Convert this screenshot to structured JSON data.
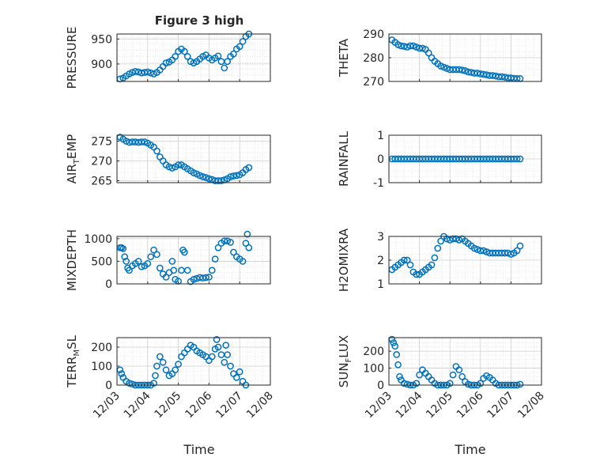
{
  "title": "Figure 3 high",
  "xlabel": "Time",
  "xticks": [
    "12/03",
    "12/04",
    "12/05",
    "12/06",
    "12/07",
    "12/08"
  ],
  "colors": {
    "marker": "#0072BD",
    "axis": "#262626",
    "grid": "#d9d9d9",
    "background": "#ffffff"
  },
  "chart_data": [
    {
      "type": "scatter",
      "ylabel_main": "PRESSURE",
      "ylabel_sub": "",
      "ylim": [
        865,
        960
      ],
      "yticks": [
        900,
        950
      ],
      "ytick_labels": [
        "900",
        "950"
      ],
      "x": [
        3.1,
        3.2,
        3.3,
        3.4,
        3.5,
        3.6,
        3.7,
        3.8,
        3.9,
        4.0,
        4.1,
        4.2,
        4.3,
        4.4,
        4.5,
        4.6,
        4.7,
        4.8,
        4.9,
        5.0,
        5.1,
        5.2,
        5.3,
        5.4,
        5.5,
        5.6,
        5.7,
        5.8,
        5.9,
        6.0,
        6.1,
        6.2,
        6.3,
        6.4,
        6.5,
        6.6,
        6.7,
        6.8,
        6.9,
        7.0,
        7.1,
        7.2,
        7.3
      ],
      "y": [
        870,
        872,
        876,
        880,
        883,
        885,
        884,
        882,
        883,
        884,
        882,
        880,
        883,
        888,
        895,
        902,
        904,
        908,
        915,
        925,
        930,
        925,
        915,
        905,
        902,
        905,
        910,
        915,
        918,
        912,
        908,
        912,
        916,
        905,
        892,
        905,
        915,
        920,
        930,
        935,
        945,
        955,
        960
      ]
    },
    {
      "type": "scatter",
      "ylabel_main": "THETA",
      "ylabel_sub": "",
      "ylim": [
        270,
        290
      ],
      "yticks": [
        270,
        280,
        290
      ],
      "ytick_labels": [
        "270",
        "280",
        "290"
      ],
      "x": [
        3.1,
        3.2,
        3.3,
        3.4,
        3.5,
        3.6,
        3.7,
        3.8,
        3.9,
        4.0,
        4.1,
        4.2,
        4.3,
        4.4,
        4.5,
        4.6,
        4.7,
        4.8,
        4.9,
        5.0,
        5.1,
        5.2,
        5.3,
        5.4,
        5.5,
        5.6,
        5.7,
        5.8,
        5.9,
        6.0,
        6.1,
        6.2,
        6.3,
        6.4,
        6.5,
        6.6,
        6.7,
        6.8,
        6.9,
        7.0,
        7.1,
        7.2,
        7.3
      ],
      "y": [
        287.5,
        286.5,
        285.5,
        285,
        284.8,
        284.5,
        285,
        285,
        284.5,
        284,
        284,
        283.5,
        282,
        280,
        278.5,
        277.5,
        276.5,
        276,
        275.5,
        275,
        275,
        275,
        275,
        274.8,
        274.5,
        274,
        273.8,
        273.5,
        273.5,
        273.2,
        273,
        272.8,
        272.5,
        272.5,
        272.3,
        272,
        272,
        271.8,
        271.5,
        271.5,
        271.3,
        271.2,
        271.2
      ]
    },
    {
      "type": "scatter",
      "ylabel_main": "AIR",
      "ylabel_sub": "T",
      "ylabel_rest": "EMP",
      "ylim": [
        264.5,
        276.5
      ],
      "yticks": [
        265,
        270,
        275
      ],
      "ytick_labels": [
        "265",
        "270",
        "275"
      ],
      "x": [
        3.1,
        3.2,
        3.3,
        3.4,
        3.5,
        3.6,
        3.7,
        3.8,
        3.9,
        4.0,
        4.1,
        4.2,
        4.3,
        4.4,
        4.5,
        4.6,
        4.7,
        4.8,
        4.9,
        5.0,
        5.1,
        5.2,
        5.3,
        5.4,
        5.5,
        5.6,
        5.7,
        5.8,
        5.9,
        6.0,
        6.1,
        6.2,
        6.3,
        6.4,
        6.5,
        6.6,
        6.7,
        6.8,
        6.9,
        7.0,
        7.1,
        7.2,
        7.3
      ],
      "y": [
        276,
        275.5,
        275,
        274.7,
        274.8,
        274.8,
        274.7,
        274.8,
        274.8,
        274.5,
        274,
        273.5,
        272.5,
        271,
        270,
        269,
        268.5,
        268.2,
        268.5,
        269,
        269,
        268.5,
        268,
        267.5,
        267,
        266.7,
        266.3,
        266,
        265.8,
        265.5,
        265.3,
        265,
        265,
        265,
        265.2,
        265.5,
        266,
        266.2,
        266.3,
        266.5,
        267,
        267.8,
        268.3
      ]
    },
    {
      "type": "scatter",
      "ylabel_main": "RAINFALL",
      "ylabel_sub": "",
      "ylim": [
        -1,
        1
      ],
      "yticks": [
        -1,
        0,
        1
      ],
      "ytick_labels": [
        "-1",
        "0",
        "1"
      ],
      "x": [
        3.1,
        3.2,
        3.3,
        3.4,
        3.5,
        3.6,
        3.7,
        3.8,
        3.9,
        4.0,
        4.1,
        4.2,
        4.3,
        4.4,
        4.5,
        4.6,
        4.7,
        4.8,
        4.9,
        5.0,
        5.1,
        5.2,
        5.3,
        5.4,
        5.5,
        5.6,
        5.7,
        5.8,
        5.9,
        6.0,
        6.1,
        6.2,
        6.3,
        6.4,
        6.5,
        6.6,
        6.7,
        6.8,
        6.9,
        7.0,
        7.1,
        7.2,
        7.3
      ],
      "y": [
        0,
        0,
        0,
        0,
        0,
        0,
        0,
        0,
        0,
        0,
        0,
        0,
        0,
        0,
        0,
        0,
        0,
        0,
        0,
        0,
        0,
        0,
        0,
        0,
        0,
        0,
        0,
        0,
        0,
        0,
        0,
        0,
        0,
        0,
        0,
        0,
        0,
        0,
        0,
        0,
        0,
        0,
        0
      ]
    },
    {
      "type": "scatter",
      "ylabel_main": "MIXDEPTH",
      "ylabel_sub": "",
      "ylim": [
        0,
        1050
      ],
      "yticks": [
        0,
        500,
        1000
      ],
      "ytick_labels": [
        "0",
        "500",
        "1000"
      ],
      "x": [
        3.1,
        3.15,
        3.2,
        3.25,
        3.3,
        3.35,
        3.4,
        3.5,
        3.6,
        3.7,
        3.8,
        3.9,
        4.0,
        4.1,
        4.2,
        4.3,
        4.4,
        4.5,
        4.6,
        4.7,
        4.8,
        4.85,
        4.9,
        5.0,
        5.1,
        5.15,
        5.2,
        5.3,
        5.4,
        5.5,
        5.6,
        5.7,
        5.8,
        5.9,
        6.0,
        6.1,
        6.2,
        6.3,
        6.4,
        6.5,
        6.6,
        6.7,
        6.8,
        6.9,
        7.0,
        7.1,
        7.2,
        7.25,
        7.3
      ],
      "y": [
        800,
        800,
        780,
        600,
        500,
        350,
        300,
        400,
        450,
        500,
        380,
        400,
        450,
        600,
        750,
        650,
        350,
        220,
        150,
        250,
        500,
        300,
        100,
        60,
        300,
        750,
        700,
        300,
        50,
        100,
        120,
        140,
        130,
        140,
        150,
        300,
        550,
        800,
        900,
        950,
        950,
        920,
        700,
        600,
        550,
        500,
        900,
        1100,
        800
      ]
    },
    {
      "type": "scatter",
      "ylabel_main": "H2OMIXRA",
      "ylabel_sub": "",
      "ylim": [
        1,
        3
      ],
      "yticks": [
        1,
        2,
        3
      ],
      "ytick_labels": [
        "1",
        "2",
        "3"
      ],
      "x": [
        3.1,
        3.2,
        3.3,
        3.4,
        3.5,
        3.6,
        3.7,
        3.8,
        3.9,
        4.0,
        4.1,
        4.2,
        4.3,
        4.4,
        4.5,
        4.6,
        4.7,
        4.8,
        4.9,
        5.0,
        5.1,
        5.2,
        5.3,
        5.4,
        5.5,
        5.6,
        5.7,
        5.8,
        5.9,
        6.0,
        6.1,
        6.2,
        6.3,
        6.4,
        6.5,
        6.6,
        6.7,
        6.8,
        6.9,
        7.0,
        7.1,
        7.2,
        7.3
      ],
      "y": [
        1.6,
        1.7,
        1.8,
        1.9,
        2.0,
        2.0,
        1.8,
        1.5,
        1.4,
        1.4,
        1.5,
        1.6,
        1.7,
        1.8,
        2.1,
        2.5,
        2.8,
        3.0,
        2.9,
        2.85,
        2.9,
        2.9,
        2.85,
        2.9,
        2.8,
        2.7,
        2.6,
        2.5,
        2.45,
        2.4,
        2.4,
        2.35,
        2.3,
        2.3,
        2.3,
        2.3,
        2.3,
        2.3,
        2.3,
        2.25,
        2.3,
        2.4,
        2.6
      ]
    },
    {
      "type": "scatter",
      "ylabel_main": "TERR",
      "ylabel_sub": "M",
      "ylabel_rest": "SL",
      "ylim": [
        0,
        250
      ],
      "yticks": [
        0,
        100,
        200
      ],
      "ytick_labels": [
        "0",
        "100",
        "200"
      ],
      "x": [
        3.1,
        3.15,
        3.2,
        3.3,
        3.4,
        3.5,
        3.6,
        3.7,
        3.8,
        3.9,
        4.0,
        4.1,
        4.2,
        4.25,
        4.3,
        4.4,
        4.5,
        4.6,
        4.7,
        4.8,
        4.9,
        5.0,
        5.1,
        5.2,
        5.3,
        5.4,
        5.5,
        5.6,
        5.7,
        5.8,
        5.9,
        6.0,
        6.1,
        6.2,
        6.25,
        6.3,
        6.4,
        6.5,
        6.55,
        6.6,
        6.7,
        6.8,
        6.9,
        7.0,
        7.1,
        7.2
      ],
      "y": [
        80,
        60,
        40,
        20,
        10,
        5,
        0,
        0,
        0,
        0,
        0,
        0,
        10,
        50,
        100,
        150,
        120,
        80,
        50,
        60,
        80,
        110,
        150,
        170,
        190,
        210,
        200,
        180,
        170,
        160,
        150,
        130,
        150,
        190,
        240,
        200,
        160,
        120,
        210,
        160,
        100,
        60,
        40,
        70,
        20,
        0
      ]
    },
    {
      "type": "scatter",
      "ylabel_main": "SUN",
      "ylabel_sub": "F",
      "ylabel_rest": "LUX",
      "ylim": [
        0,
        280
      ],
      "yticks": [
        0,
        100,
        200
      ],
      "ytick_labels": [
        "0",
        "100",
        "200"
      ],
      "x": [
        3.1,
        3.15,
        3.2,
        3.25,
        3.3,
        3.35,
        3.4,
        3.5,
        3.6,
        3.7,
        3.8,
        3.9,
        4.0,
        4.1,
        4.2,
        4.3,
        4.4,
        4.5,
        4.6,
        4.7,
        4.8,
        4.9,
        5.0,
        5.1,
        5.2,
        5.3,
        5.4,
        5.5,
        5.6,
        5.7,
        5.8,
        5.9,
        6.0,
        6.1,
        6.2,
        6.3,
        6.4,
        6.5,
        6.6,
        6.7,
        6.8,
        6.9,
        7.0,
        7.1,
        7.2,
        7.3
      ],
      "y": [
        270,
        250,
        230,
        180,
        120,
        50,
        30,
        10,
        5,
        0,
        0,
        10,
        60,
        90,
        70,
        50,
        30,
        10,
        0,
        0,
        0,
        0,
        10,
        60,
        110,
        90,
        50,
        20,
        5,
        0,
        0,
        0,
        10,
        40,
        55,
        45,
        30,
        10,
        0,
        0,
        0,
        0,
        0,
        0,
        0,
        5
      ]
    }
  ]
}
